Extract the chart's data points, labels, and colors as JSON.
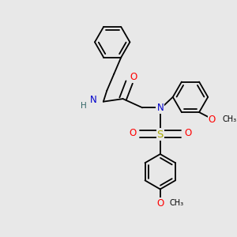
{
  "bg_color": "#e8e8e8",
  "bond_color": "#000000",
  "atom_colors": {
    "N": "#0000cc",
    "O": "#ff0000",
    "S": "#aaaa00",
    "H": "#336666",
    "C": "#000000"
  },
  "font_size": 7.5,
  "bond_width": 1.3,
  "xlim": [
    0,
    6.0
  ],
  "ylim": [
    0,
    6.0
  ]
}
